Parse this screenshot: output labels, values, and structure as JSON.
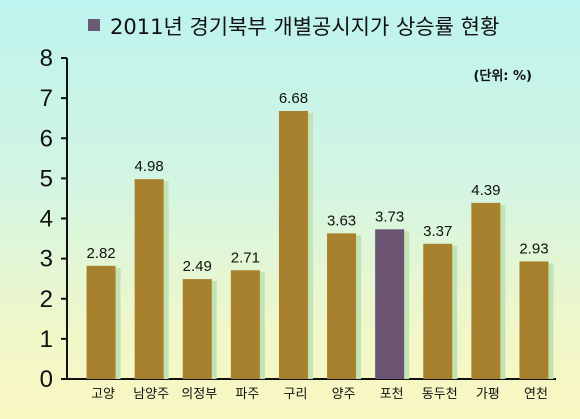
{
  "chart_data": {
    "type": "bar",
    "title": "2011년 경기북부 개별공시지가 상승률 현황",
    "unit": "(단위: %)",
    "categories": [
      "고양",
      "남양주",
      "의정부",
      "파주",
      "구리",
      "양주",
      "포천",
      "동두천",
      "가평",
      "연천"
    ],
    "values": [
      2.82,
      4.98,
      2.49,
      2.71,
      6.68,
      3.63,
      3.73,
      3.37,
      4.39,
      2.93
    ],
    "value_labels": [
      "2.82",
      "4.98",
      "2.49",
      "2.71",
      "6.68",
      "3.63",
      "3.73",
      "3.37",
      "4.39",
      "2.93"
    ],
    "yticks": [
      "0",
      "1",
      "2",
      "3",
      "4",
      "5",
      "6",
      "7",
      "8"
    ],
    "ylim": [
      0,
      8
    ],
    "grid": false,
    "highlight_index": 6,
    "colors": {
      "bar": "#a8812f",
      "highlight": "#6b5372",
      "shadow": "#c3e3b4",
      "title_marker": "#6b5a73",
      "axis": "#111111"
    }
  }
}
